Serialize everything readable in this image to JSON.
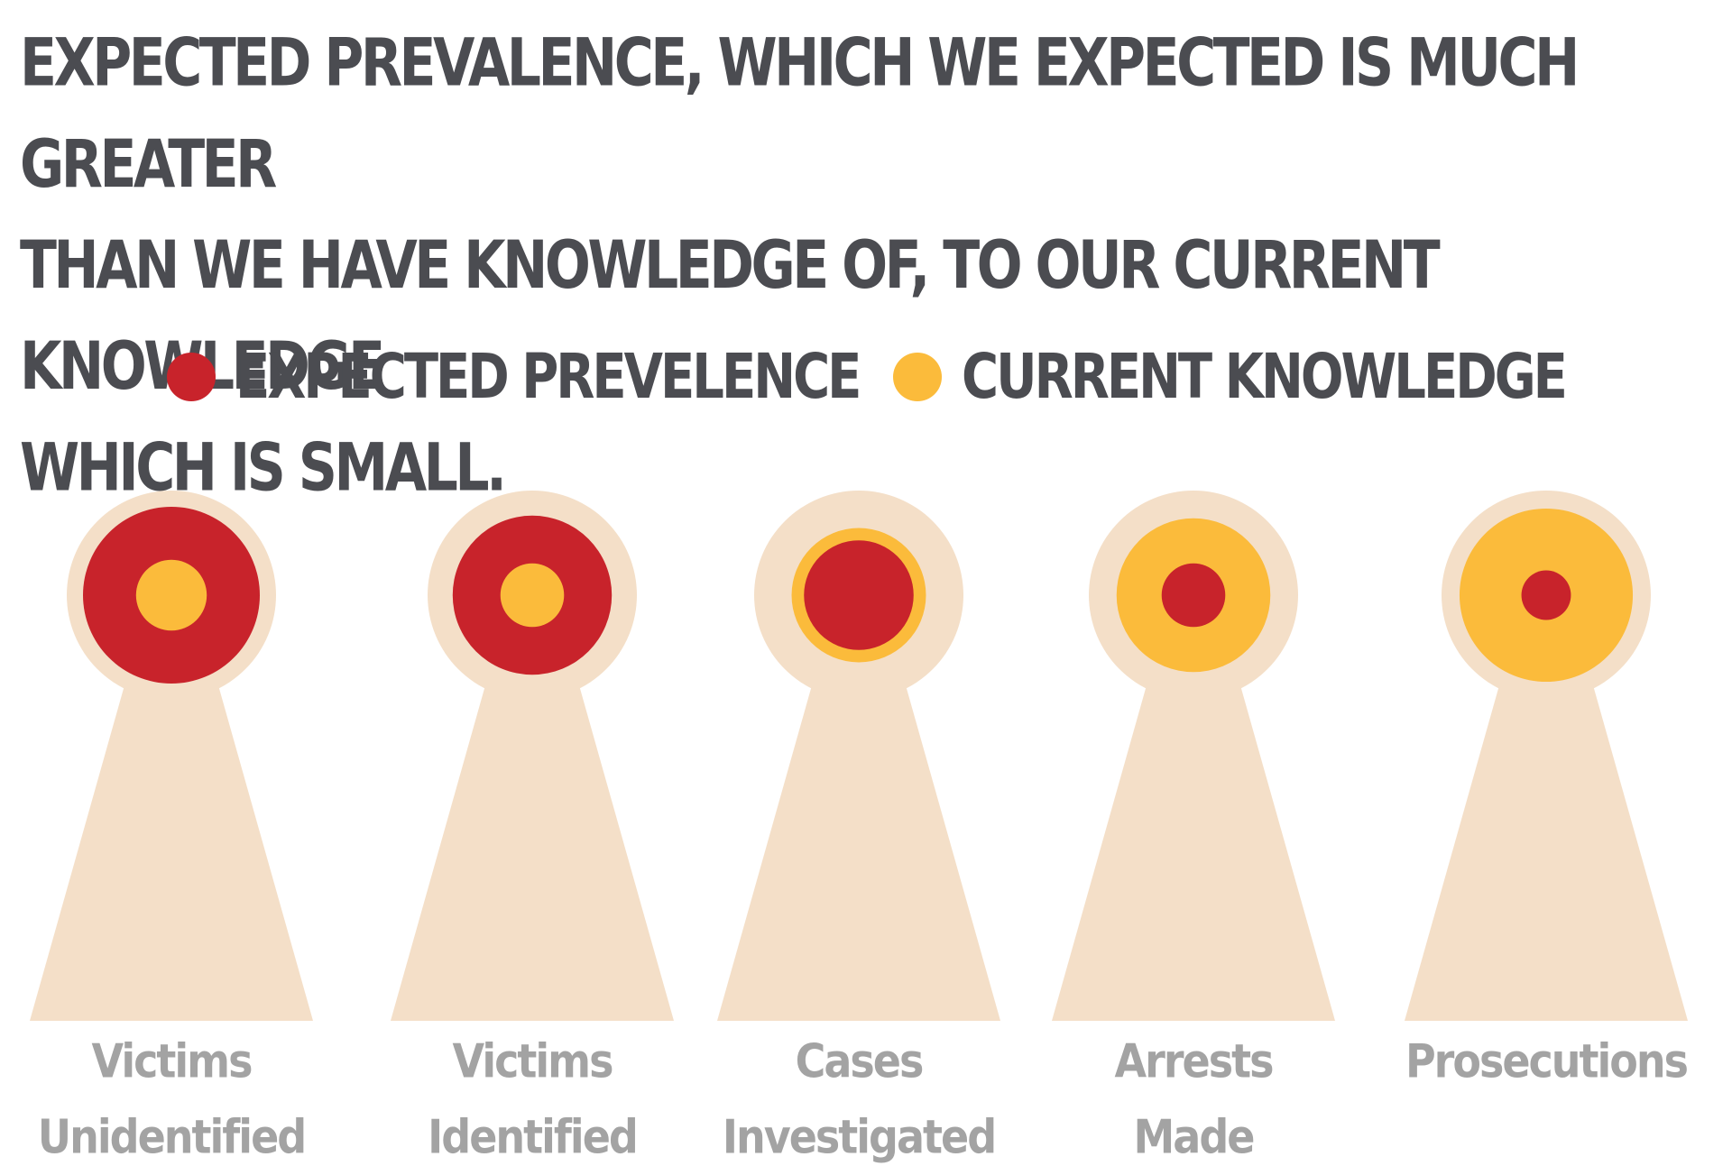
{
  "headline": {
    "line1": "EXPECTED PREVALENCE, WHICH WE EXPECTED IS MUCH GREATER",
    "line2": "THAN WE HAVE KNOWLEDGE OF, TO OUR CURRENT KNOWLEDGE",
    "line3": "WHICH IS SMALL."
  },
  "legend": {
    "expected": {
      "label": "EXPECTED PREVELENCE",
      "color": "#c8232b"
    },
    "current": {
      "label": "CURRENT KNOWLEDGE",
      "color": "#fbbb3b"
    }
  },
  "colors": {
    "keyhole": "#f4dfc8",
    "text_dark": "#4b4c51",
    "text_label": "#a3a3a3"
  },
  "stages": [
    {
      "line1": "Victims",
      "line2": "Unidentified",
      "expected_relative": 1.0,
      "current_relative": 0.4,
      "outer": "expected"
    },
    {
      "line1": "Victims",
      "line2": "Identified",
      "expected_relative": 0.9,
      "current_relative": 0.36,
      "outer": "expected"
    },
    {
      "line1": "Cases",
      "line2": "Investigated",
      "expected_relative": 0.62,
      "current_relative": 0.76,
      "outer": "current"
    },
    {
      "line1": "Arrests",
      "line2": "Made",
      "expected_relative": 0.36,
      "current_relative": 0.87,
      "outer": "current"
    },
    {
      "line1": "",
      "line2": "Prosecutions",
      "expected_relative": 0.28,
      "current_relative": 0.98,
      "outer": "current"
    }
  ]
}
